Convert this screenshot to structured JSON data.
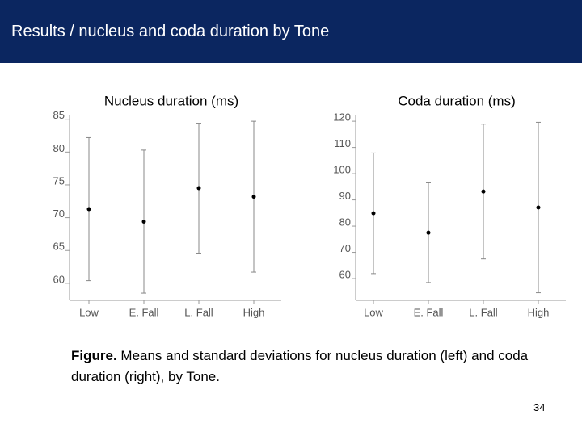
{
  "header": {
    "title": "Results / nucleus and coda duration by Tone"
  },
  "chart_data": [
    {
      "type": "errorbar",
      "title": "Nucleus duration (ms)",
      "categories": [
        "Low",
        "E. Fall",
        "L. Fall",
        "High"
      ],
      "values": [
        71.3,
        69.4,
        74.5,
        73.2
      ],
      "errors": [
        10.9,
        10.9,
        9.9,
        11.5
      ],
      "color": "#000000",
      "ylim": [
        57.4,
        85.7
      ],
      "yticks": [
        60,
        65,
        70,
        75,
        80,
        85
      ]
    },
    {
      "type": "errorbar",
      "title": "Coda duration (ms)",
      "categories": [
        "Low",
        "E. Fall",
        "L. Fall",
        "High"
      ],
      "values": [
        84.9,
        77.5,
        93.2,
        87.1
      ],
      "errors": [
        23,
        19,
        25.7,
        32.5
      ],
      "color": "#000000",
      "ylim": [
        51.7,
        122.5
      ],
      "yticks": [
        60,
        70,
        80,
        90,
        100,
        110,
        120
      ]
    }
  ],
  "caption": {
    "label": "Figure.",
    "text": "Means and standard deviations for nucleus duration (left) and coda duration (right), by Tone."
  },
  "page_number": "34"
}
